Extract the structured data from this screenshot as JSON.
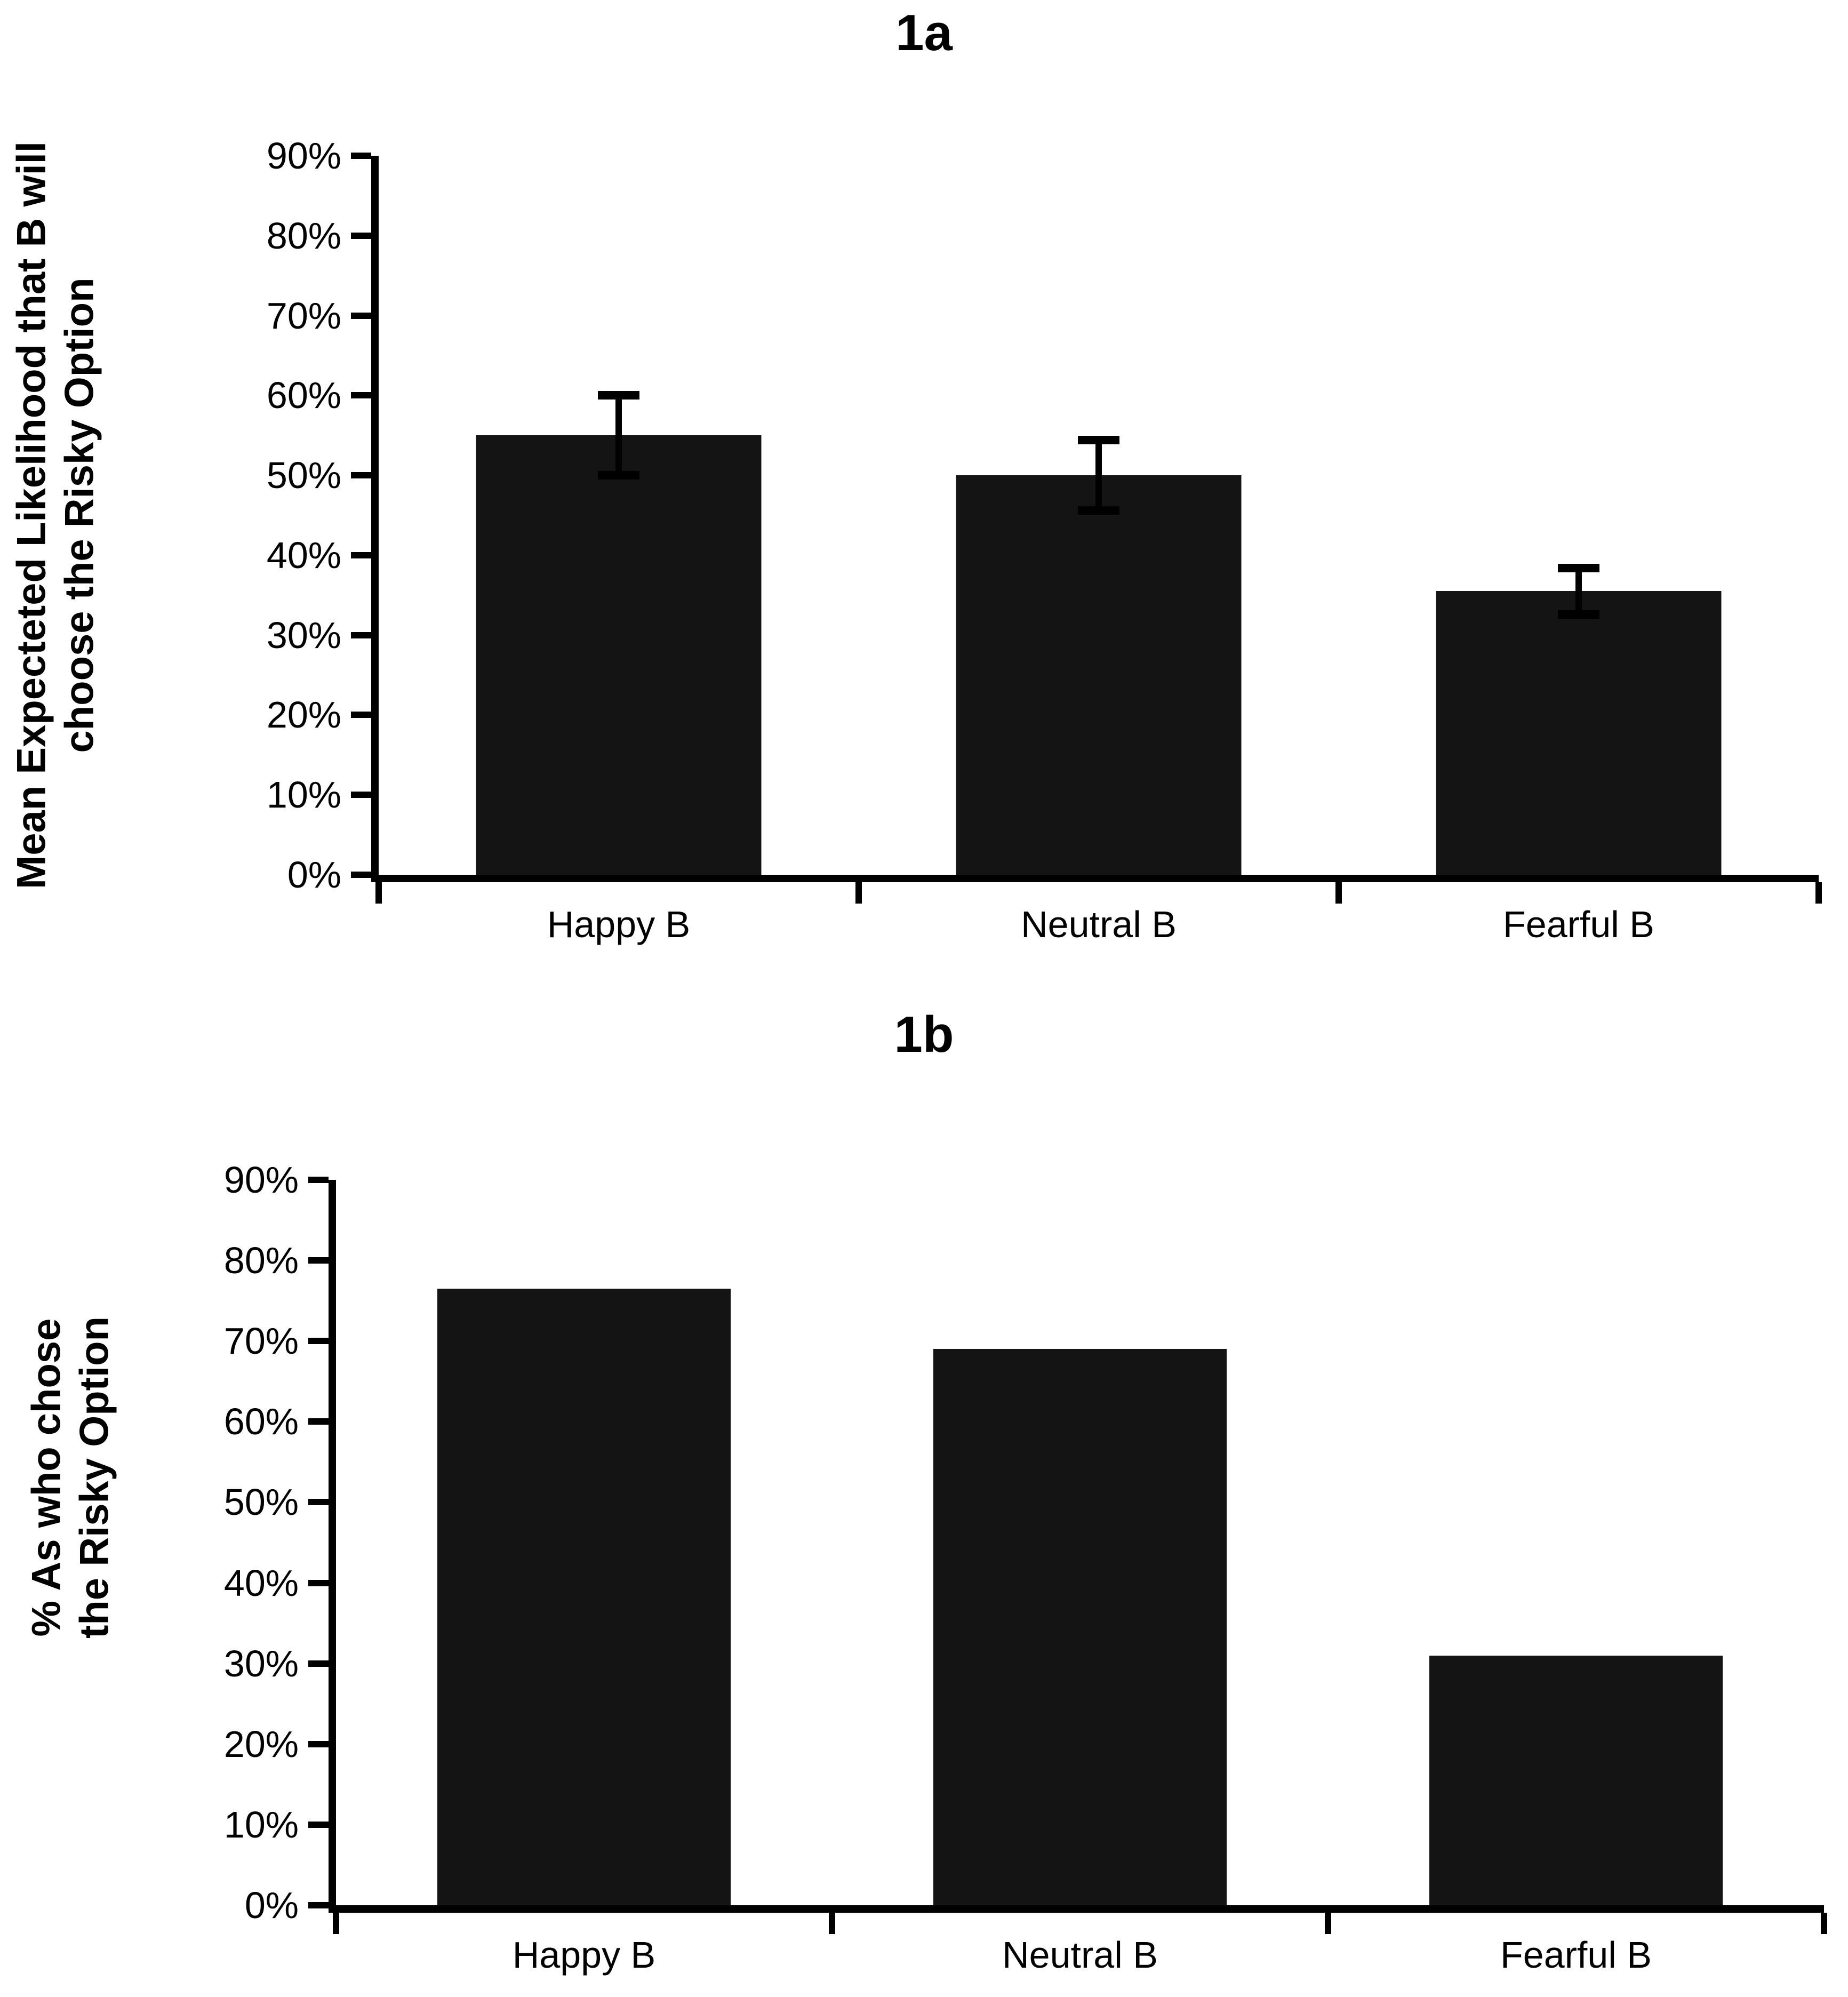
{
  "figure": {
    "panel_a_title": "1a",
    "panel_b_title": "1b",
    "bar_color": "#141414",
    "axis_color": "#000000",
    "background_color": "#ffffff"
  },
  "panel_a": {
    "ylabel_line1": "Mean Expecteted Likelihood that B will",
    "ylabel_line2": "choose the Risky Option"
  },
  "panel_b": {
    "ylabel_line1": "% As who chose",
    "ylabel_line2": "the Risky Option"
  },
  "chart_data": [
    {
      "type": "bar",
      "panel": "1a",
      "title": "1a",
      "categories": [
        "Happy B",
        "Neutral B",
        "Fearful B"
      ],
      "values": [
        55,
        50,
        35.5
      ],
      "error_bars": [
        5,
        4.4,
        2.9
      ],
      "ylabel": "Mean Expecteted Likelihood that B will choose the Risky Option",
      "ylabel_lines": [
        "Mean Expecteted Likelihood that B will",
        "choose the Risky Option"
      ],
      "xlabel": "",
      "ylim": [
        0,
        90
      ],
      "ytick_step": 10,
      "ytick_labels": [
        "90%",
        "80%",
        "70%",
        "60%",
        "50%",
        "40%",
        "30%",
        "20%",
        "10%",
        "0%"
      ],
      "unit": "%",
      "bar_color": "#141414",
      "grid": false,
      "legend": null
    },
    {
      "type": "bar",
      "panel": "1b",
      "title": "1b",
      "categories": [
        "Happy B",
        "Neutral B",
        "Fearful B"
      ],
      "values": [
        76.5,
        69,
        31
      ],
      "error_bars": null,
      "ylabel": "% As who chose the Risky Option",
      "ylabel_lines": [
        "% As who chose",
        "the Risky Option"
      ],
      "xlabel": "",
      "ylim": [
        0,
        90
      ],
      "ytick_step": 10,
      "ytick_labels": [
        "90%",
        "80%",
        "70%",
        "60%",
        "50%",
        "40%",
        "30%",
        "20%",
        "10%",
        "0%"
      ],
      "unit": "%",
      "bar_color": "#141414",
      "grid": false,
      "legend": null
    }
  ]
}
